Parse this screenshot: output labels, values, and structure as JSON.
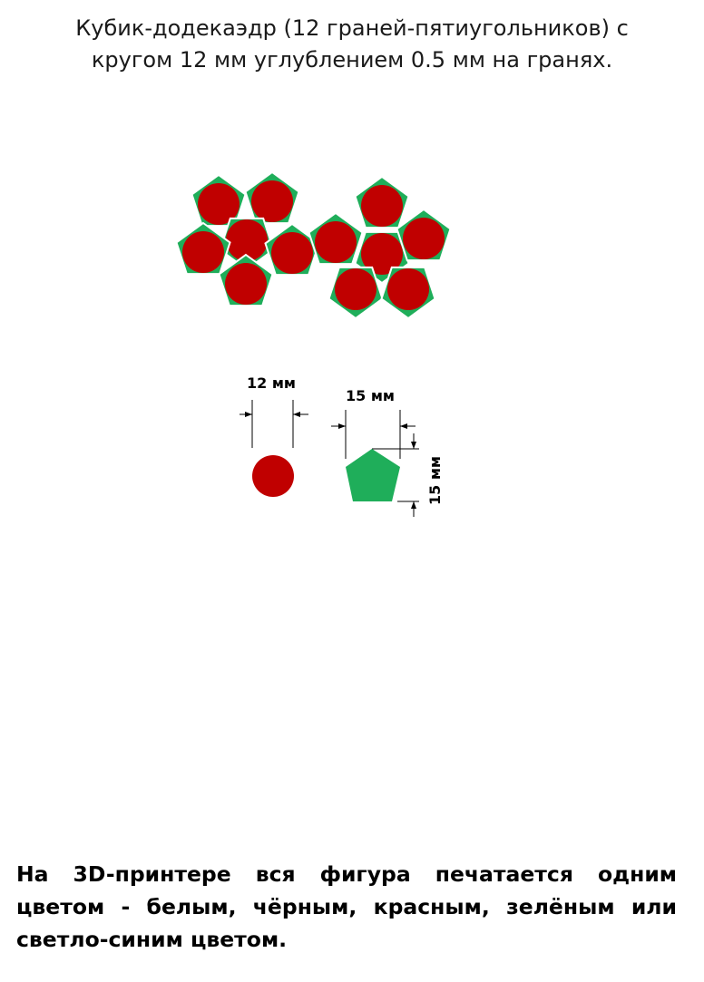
{
  "page": {
    "title_line1": "Кубик-додекаэдр (12 граней-пятиугольников) с",
    "title_line2": "кругом 12 мм углублением 0.5 мм на гранях."
  },
  "net": {
    "face_count": 12,
    "pentagon_color": "#1fae5a",
    "circle_color": "#c00000",
    "outline_color": "#ffffff"
  },
  "dimensions": {
    "circle_label": "12 мм",
    "pentagon_width_label": "15 мм",
    "pentagon_height_label": "15 мм"
  },
  "footer": {
    "text": "На 3D-принтере вся фигура печатается одним цветом - белым, чёрным, красным, зелёным или светло-синим цветом."
  }
}
